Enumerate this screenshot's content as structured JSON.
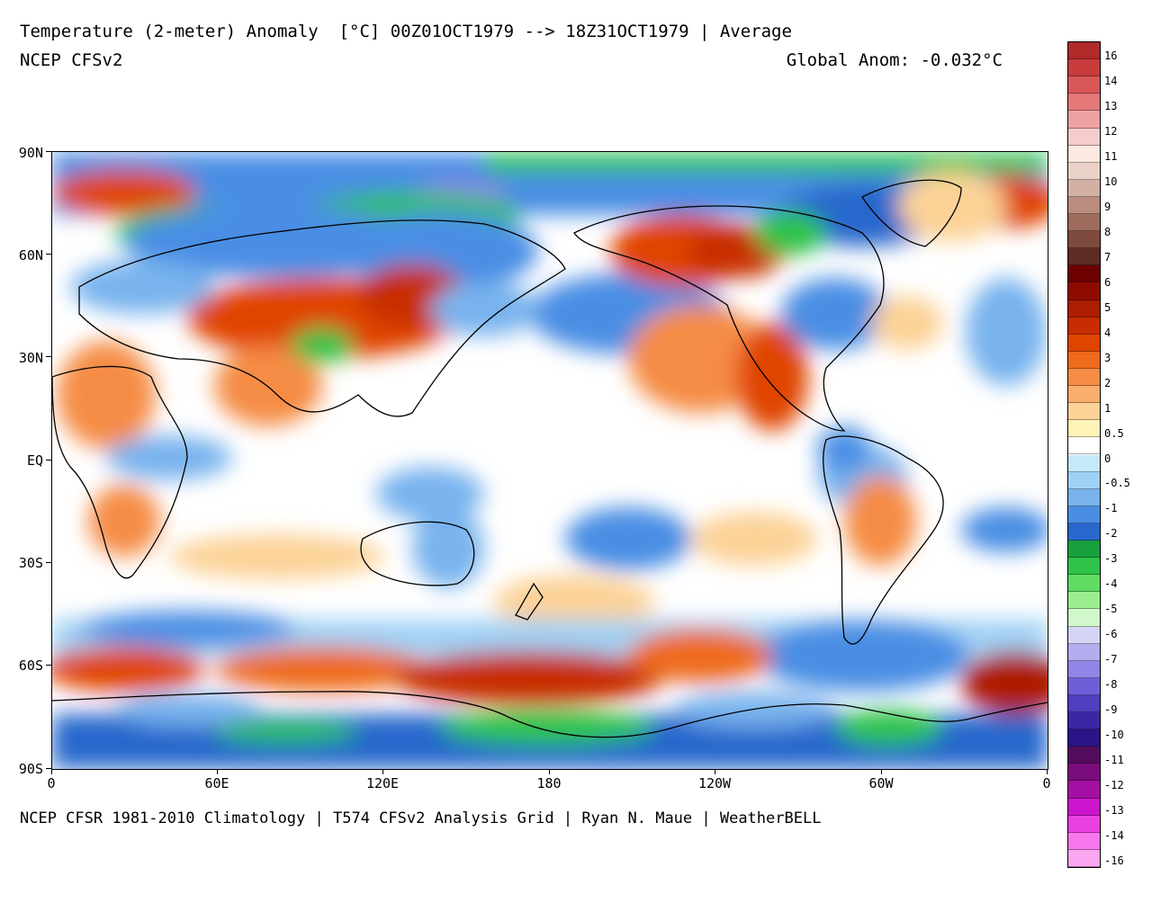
{
  "header": {
    "title": "Temperature (2-meter) Anomaly  [°C] 00Z01OCT1979 --> 18Z31OCT1979 | Average",
    "model": "NCEP CFSv2",
    "global_anomaly": "Global Anom: -0.032°C"
  },
  "footer": "NCEP CFSR 1981-2010 Climatology | T574 CFSv2 Analysis Grid | Ryan N. Maue | WeatherBELL",
  "map": {
    "lat_labels": [
      "90N",
      "60N",
      "30N",
      "EQ",
      "30S",
      "60S",
      "90S"
    ],
    "lon_labels": [
      "0",
      "60E",
      "120E",
      "180",
      "120W",
      "60W",
      "0"
    ]
  },
  "colorbar": {
    "labels": [
      "16",
      "14",
      "13",
      "12",
      "11",
      "10",
      "9",
      "8",
      "7",
      "6",
      "5",
      "4",
      "3",
      "2",
      "1",
      "0.5",
      "0",
      "-0.5",
      "-1",
      "-2",
      "-3",
      "-4",
      "-5",
      "-6",
      "-7",
      "-8",
      "-9",
      "-10",
      "-11",
      "-12",
      "-13",
      "-14",
      "-16"
    ],
    "colors": [
      "#b02a2a",
      "#c83c3c",
      "#d95757",
      "#e47878",
      "#eea1a1",
      "#f6cccc",
      "#fbe9e0",
      "#ead2c8",
      "#d3b0a3",
      "#b98c7d",
      "#9e6b5d",
      "#7f4a3e",
      "#5e2c24",
      "#6e0000",
      "#8e0b00",
      "#ad1d00",
      "#c72d00",
      "#e04500",
      "#ee6a1c",
      "#f58c45",
      "#f9ae6c",
      "#fcd296",
      "#fff3b8",
      "#ffffff",
      "#c4e9f8",
      "#9fd0f5",
      "#78b3ee",
      "#4a8ee4",
      "#2868cc",
      "#18a03c",
      "#2fc24a",
      "#60dc62",
      "#9aee8e",
      "#d3f7cc",
      "#d5d4f6",
      "#b2aef0",
      "#8f86e8",
      "#6d5fd8",
      "#4e3fbe",
      "#3b27a4",
      "#2b1487",
      "#520c5c",
      "#7a0c7c",
      "#a410a4",
      "#cc14cc",
      "#ea40e0",
      "#f778ec",
      "#fba6f0"
    ]
  }
}
